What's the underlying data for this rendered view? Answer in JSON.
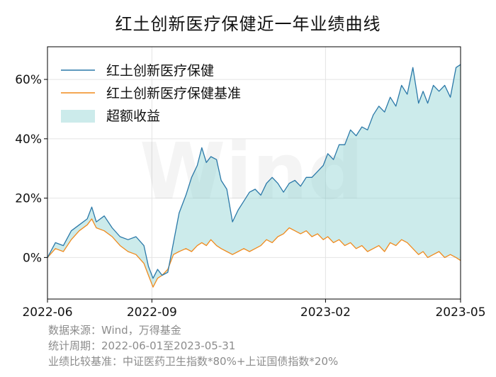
{
  "chart_data": {
    "type": "line",
    "title": "红土创新医疗保健近一年业绩曲线",
    "xlabel": "",
    "ylabel": "",
    "xlim": [
      "2022-06-01",
      "2023-05-31"
    ],
    "ylim": [
      -14,
      71
    ],
    "x_ticks": [
      {
        "date": "2022-06-01",
        "label": "2022-06"
      },
      {
        "date": "2022-09-01",
        "label": "2022-09"
      },
      {
        "date": "2023-02-01",
        "label": "2023-02"
      },
      {
        "date": "2023-05-31",
        "label": "2023-05"
      }
    ],
    "y_ticks": [
      {
        "value": 0,
        "label": "0%"
      },
      {
        "value": 20,
        "label": "20%"
      },
      {
        "value": 40,
        "label": "40%"
      },
      {
        "value": 60,
        "label": "60%"
      }
    ],
    "grid": true,
    "legend": "top-left",
    "series": [
      {
        "name": "红土创新医疗保健",
        "color": "#2a78a8",
        "points": [
          [
            "2022-06-01",
            0
          ],
          [
            "2022-06-08",
            5
          ],
          [
            "2022-06-15",
            4
          ],
          [
            "2022-06-22",
            9
          ],
          [
            "2022-06-29",
            11
          ],
          [
            "2022-07-06",
            13
          ],
          [
            "2022-07-10",
            17
          ],
          [
            "2022-07-14",
            12
          ],
          [
            "2022-07-21",
            14
          ],
          [
            "2022-07-28",
            10
          ],
          [
            "2022-08-04",
            7
          ],
          [
            "2022-08-11",
            6
          ],
          [
            "2022-08-18",
            7
          ],
          [
            "2022-08-25",
            4
          ],
          [
            "2022-08-29",
            -3
          ],
          [
            "2022-09-02",
            -7
          ],
          [
            "2022-09-06",
            -4
          ],
          [
            "2022-09-10",
            -6
          ],
          [
            "2022-09-15",
            -5
          ],
          [
            "2022-09-20",
            5
          ],
          [
            "2022-09-25",
            15
          ],
          [
            "2022-10-01",
            21
          ],
          [
            "2022-10-06",
            27
          ],
          [
            "2022-10-11",
            31
          ],
          [
            "2022-10-15",
            37
          ],
          [
            "2022-10-19",
            32
          ],
          [
            "2022-10-23",
            34
          ],
          [
            "2022-10-28",
            33
          ],
          [
            "2022-11-01",
            26
          ],
          [
            "2022-11-06",
            23
          ],
          [
            "2022-11-11",
            12
          ],
          [
            "2022-11-16",
            16
          ],
          [
            "2022-11-21",
            19
          ],
          [
            "2022-11-26",
            22
          ],
          [
            "2022-12-01",
            23
          ],
          [
            "2022-12-06",
            21
          ],
          [
            "2022-12-11",
            25
          ],
          [
            "2022-12-16",
            27
          ],
          [
            "2022-12-21",
            25
          ],
          [
            "2022-12-26",
            22
          ],
          [
            "2022-12-31",
            25
          ],
          [
            "2023-01-05",
            26
          ],
          [
            "2023-01-10",
            24
          ],
          [
            "2023-01-15",
            27
          ],
          [
            "2023-01-20",
            27
          ],
          [
            "2023-01-25",
            29
          ],
          [
            "2023-01-30",
            31
          ],
          [
            "2023-02-03",
            35
          ],
          [
            "2023-02-08",
            33
          ],
          [
            "2023-02-13",
            38
          ],
          [
            "2023-02-18",
            38
          ],
          [
            "2023-02-23",
            43
          ],
          [
            "2023-02-28",
            41
          ],
          [
            "2023-03-05",
            44
          ],
          [
            "2023-03-10",
            43
          ],
          [
            "2023-03-15",
            48
          ],
          [
            "2023-03-20",
            51
          ],
          [
            "2023-03-25",
            49
          ],
          [
            "2023-03-30",
            54
          ],
          [
            "2023-04-04",
            51
          ],
          [
            "2023-04-09",
            58
          ],
          [
            "2023-04-14",
            55
          ],
          [
            "2023-04-19",
            64
          ],
          [
            "2023-04-24",
            52
          ],
          [
            "2023-04-28",
            56
          ],
          [
            "2023-05-02",
            52
          ],
          [
            "2023-05-07",
            58
          ],
          [
            "2023-05-12",
            56
          ],
          [
            "2023-05-17",
            58
          ],
          [
            "2023-05-22",
            54
          ],
          [
            "2023-05-27",
            64
          ],
          [
            "2023-05-31",
            65
          ]
        ]
      },
      {
        "name": "红土创新医疗保健基准",
        "color": "#f08a1c",
        "points": [
          [
            "2022-06-01",
            0
          ],
          [
            "2022-06-08",
            3
          ],
          [
            "2022-06-15",
            2
          ],
          [
            "2022-06-22",
            6
          ],
          [
            "2022-06-29",
            9
          ],
          [
            "2022-07-06",
            11
          ],
          [
            "2022-07-10",
            13
          ],
          [
            "2022-07-14",
            10
          ],
          [
            "2022-07-21",
            9
          ],
          [
            "2022-07-28",
            7
          ],
          [
            "2022-08-04",
            4
          ],
          [
            "2022-08-11",
            2
          ],
          [
            "2022-08-18",
            1
          ],
          [
            "2022-08-25",
            -2
          ],
          [
            "2022-08-29",
            -6
          ],
          [
            "2022-09-02",
            -10
          ],
          [
            "2022-09-06",
            -7
          ],
          [
            "2022-09-10",
            -6
          ],
          [
            "2022-09-15",
            -4
          ],
          [
            "2022-09-20",
            1
          ],
          [
            "2022-09-25",
            2
          ],
          [
            "2022-10-01",
            3
          ],
          [
            "2022-10-06",
            2
          ],
          [
            "2022-10-11",
            4
          ],
          [
            "2022-10-15",
            5
          ],
          [
            "2022-10-19",
            4
          ],
          [
            "2022-10-23",
            6
          ],
          [
            "2022-10-28",
            4
          ],
          [
            "2022-11-01",
            3
          ],
          [
            "2022-11-06",
            2
          ],
          [
            "2022-11-11",
            1
          ],
          [
            "2022-11-16",
            2
          ],
          [
            "2022-11-21",
            3
          ],
          [
            "2022-11-26",
            2
          ],
          [
            "2022-12-01",
            3
          ],
          [
            "2022-12-06",
            4
          ],
          [
            "2022-12-11",
            6
          ],
          [
            "2022-12-16",
            5
          ],
          [
            "2022-12-21",
            7
          ],
          [
            "2022-12-26",
            8
          ],
          [
            "2022-12-31",
            10
          ],
          [
            "2023-01-05",
            9
          ],
          [
            "2023-01-10",
            8
          ],
          [
            "2023-01-15",
            9
          ],
          [
            "2023-01-20",
            7
          ],
          [
            "2023-01-25",
            8
          ],
          [
            "2023-01-30",
            6
          ],
          [
            "2023-02-03",
            7
          ],
          [
            "2023-02-08",
            5
          ],
          [
            "2023-02-13",
            6
          ],
          [
            "2023-02-18",
            4
          ],
          [
            "2023-02-23",
            5
          ],
          [
            "2023-02-28",
            3
          ],
          [
            "2023-03-05",
            4
          ],
          [
            "2023-03-10",
            2
          ],
          [
            "2023-03-15",
            3
          ],
          [
            "2023-03-20",
            4
          ],
          [
            "2023-03-25",
            2
          ],
          [
            "2023-03-30",
            5
          ],
          [
            "2023-04-04",
            4
          ],
          [
            "2023-04-09",
            6
          ],
          [
            "2023-04-14",
            5
          ],
          [
            "2023-04-19",
            3
          ],
          [
            "2023-04-24",
            1
          ],
          [
            "2023-04-28",
            2
          ],
          [
            "2023-05-02",
            0
          ],
          [
            "2023-05-07",
            1
          ],
          [
            "2023-05-12",
            2
          ],
          [
            "2023-05-17",
            0
          ],
          [
            "2023-05-22",
            1
          ],
          [
            "2023-05-27",
            0
          ],
          [
            "2023-05-31",
            -1
          ]
        ]
      }
    ],
    "area": {
      "name": "超额收益",
      "color": "#8fd3d3",
      "opacity": 0.45
    }
  },
  "footer": {
    "source": "数据来源：Wind，万得基金",
    "period": "统计周期：2022-06-01至2023-05-31",
    "benchmark": "业绩比较基准：中证医药卫生指数*80%+上证国债指数*20%"
  }
}
